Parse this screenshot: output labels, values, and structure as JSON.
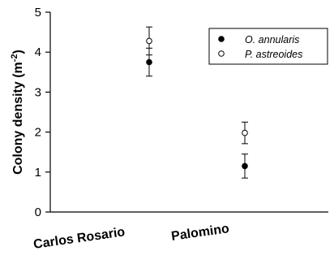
{
  "chart_data": {
    "type": "scatter",
    "categories": [
      "Carlos Rosario",
      "Palomino"
    ],
    "ylabel_text": "Colony density (m",
    "ylabel_sup": "-2",
    "ylabel_close": ")",
    "ylim": [
      0,
      5
    ],
    "yticks": [
      "0",
      "1",
      "2",
      "3",
      "4",
      "5"
    ],
    "grid": false,
    "legend_position": "top-right",
    "series": [
      {
        "name": "O. annularis",
        "marker": "filled-circle",
        "color": "#000000",
        "values": [
          3.75,
          1.15
        ],
        "error": [
          0.35,
          0.3
        ]
      },
      {
        "name": "P. astreoides",
        "marker": "open-circle",
        "color": "#000000",
        "values": [
          4.28,
          1.98
        ],
        "error": [
          0.35,
          0.27
        ]
      }
    ]
  }
}
